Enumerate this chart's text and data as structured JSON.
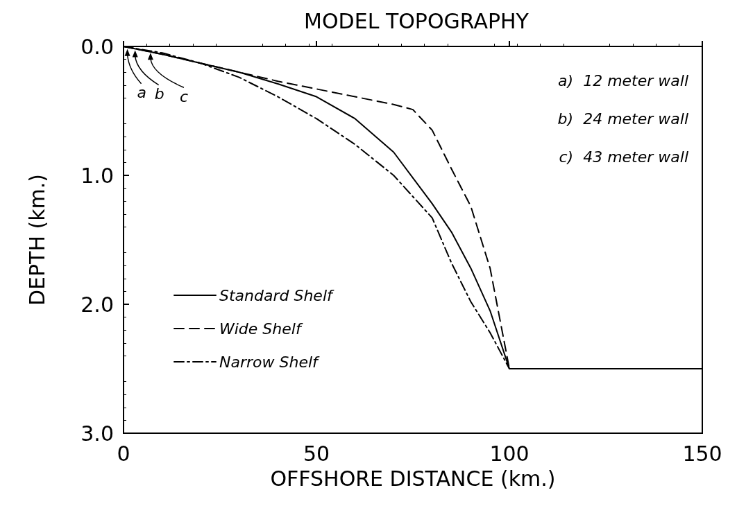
{
  "chart_data": {
    "type": "line",
    "title": "MODEL TOPOGRAPHY",
    "xlabel": "OFFSHORE DISTANCE (km.)",
    "ylabel": "DEPTH (km.)",
    "xlim": [
      0,
      150
    ],
    "xticks": [
      0,
      50,
      100,
      150
    ],
    "ylim": [
      3,
      0
    ],
    "yticks": [
      {
        "value": 0,
        "label": "0.0"
      },
      {
        "value": 1,
        "label": "1.0"
      },
      {
        "value": 2,
        "label": "2.0"
      },
      {
        "value": 3,
        "label": "3.0"
      }
    ],
    "grid": false,
    "legend": "bottom left",
    "marker": "none",
    "annotations": [
      {
        "text": "a",
        "x": 1,
        "y": 0.02
      },
      {
        "text": "b",
        "x": 3,
        "y": 0.03
      },
      {
        "text": "c",
        "x": 7,
        "y": 0.05
      },
      "a)  12 meter wall",
      "b)  24 meter wall",
      "c)  43 meter wall"
    ],
    "series": [
      {
        "name": "Standard Shelf",
        "color": "#000000",
        "line_style": "solid",
        "x": [
          0,
          10,
          20,
          30,
          40,
          50,
          60,
          70,
          80,
          85,
          90,
          95,
          100,
          150
        ],
        "values": [
          0,
          0.06,
          0.13,
          0.2,
          0.29,
          0.39,
          0.56,
          0.82,
          1.22,
          1.44,
          1.72,
          2.05,
          2.5,
          2.5
        ]
      },
      {
        "name": "Wide Shelf",
        "color": "#000000",
        "line_style": "dashed",
        "x": [
          0,
          10,
          20,
          30,
          40,
          50,
          60,
          70,
          75,
          80,
          85,
          90,
          95,
          100,
          150
        ],
        "values": [
          0,
          0.06,
          0.13,
          0.2,
          0.27,
          0.33,
          0.39,
          0.45,
          0.49,
          0.65,
          0.95,
          1.24,
          1.72,
          2.5,
          2.5
        ]
      },
      {
        "name": "Narrow Shelf",
        "color": "#000000",
        "line_style": "dashdot",
        "x": [
          0,
          10,
          20,
          30,
          40,
          50,
          60,
          70,
          80,
          85,
          90,
          95,
          100,
          150
        ],
        "values": [
          0,
          0.05,
          0.13,
          0.24,
          0.39,
          0.56,
          0.76,
          1.0,
          1.33,
          1.68,
          1.98,
          2.22,
          2.5,
          2.5
        ]
      }
    ]
  }
}
